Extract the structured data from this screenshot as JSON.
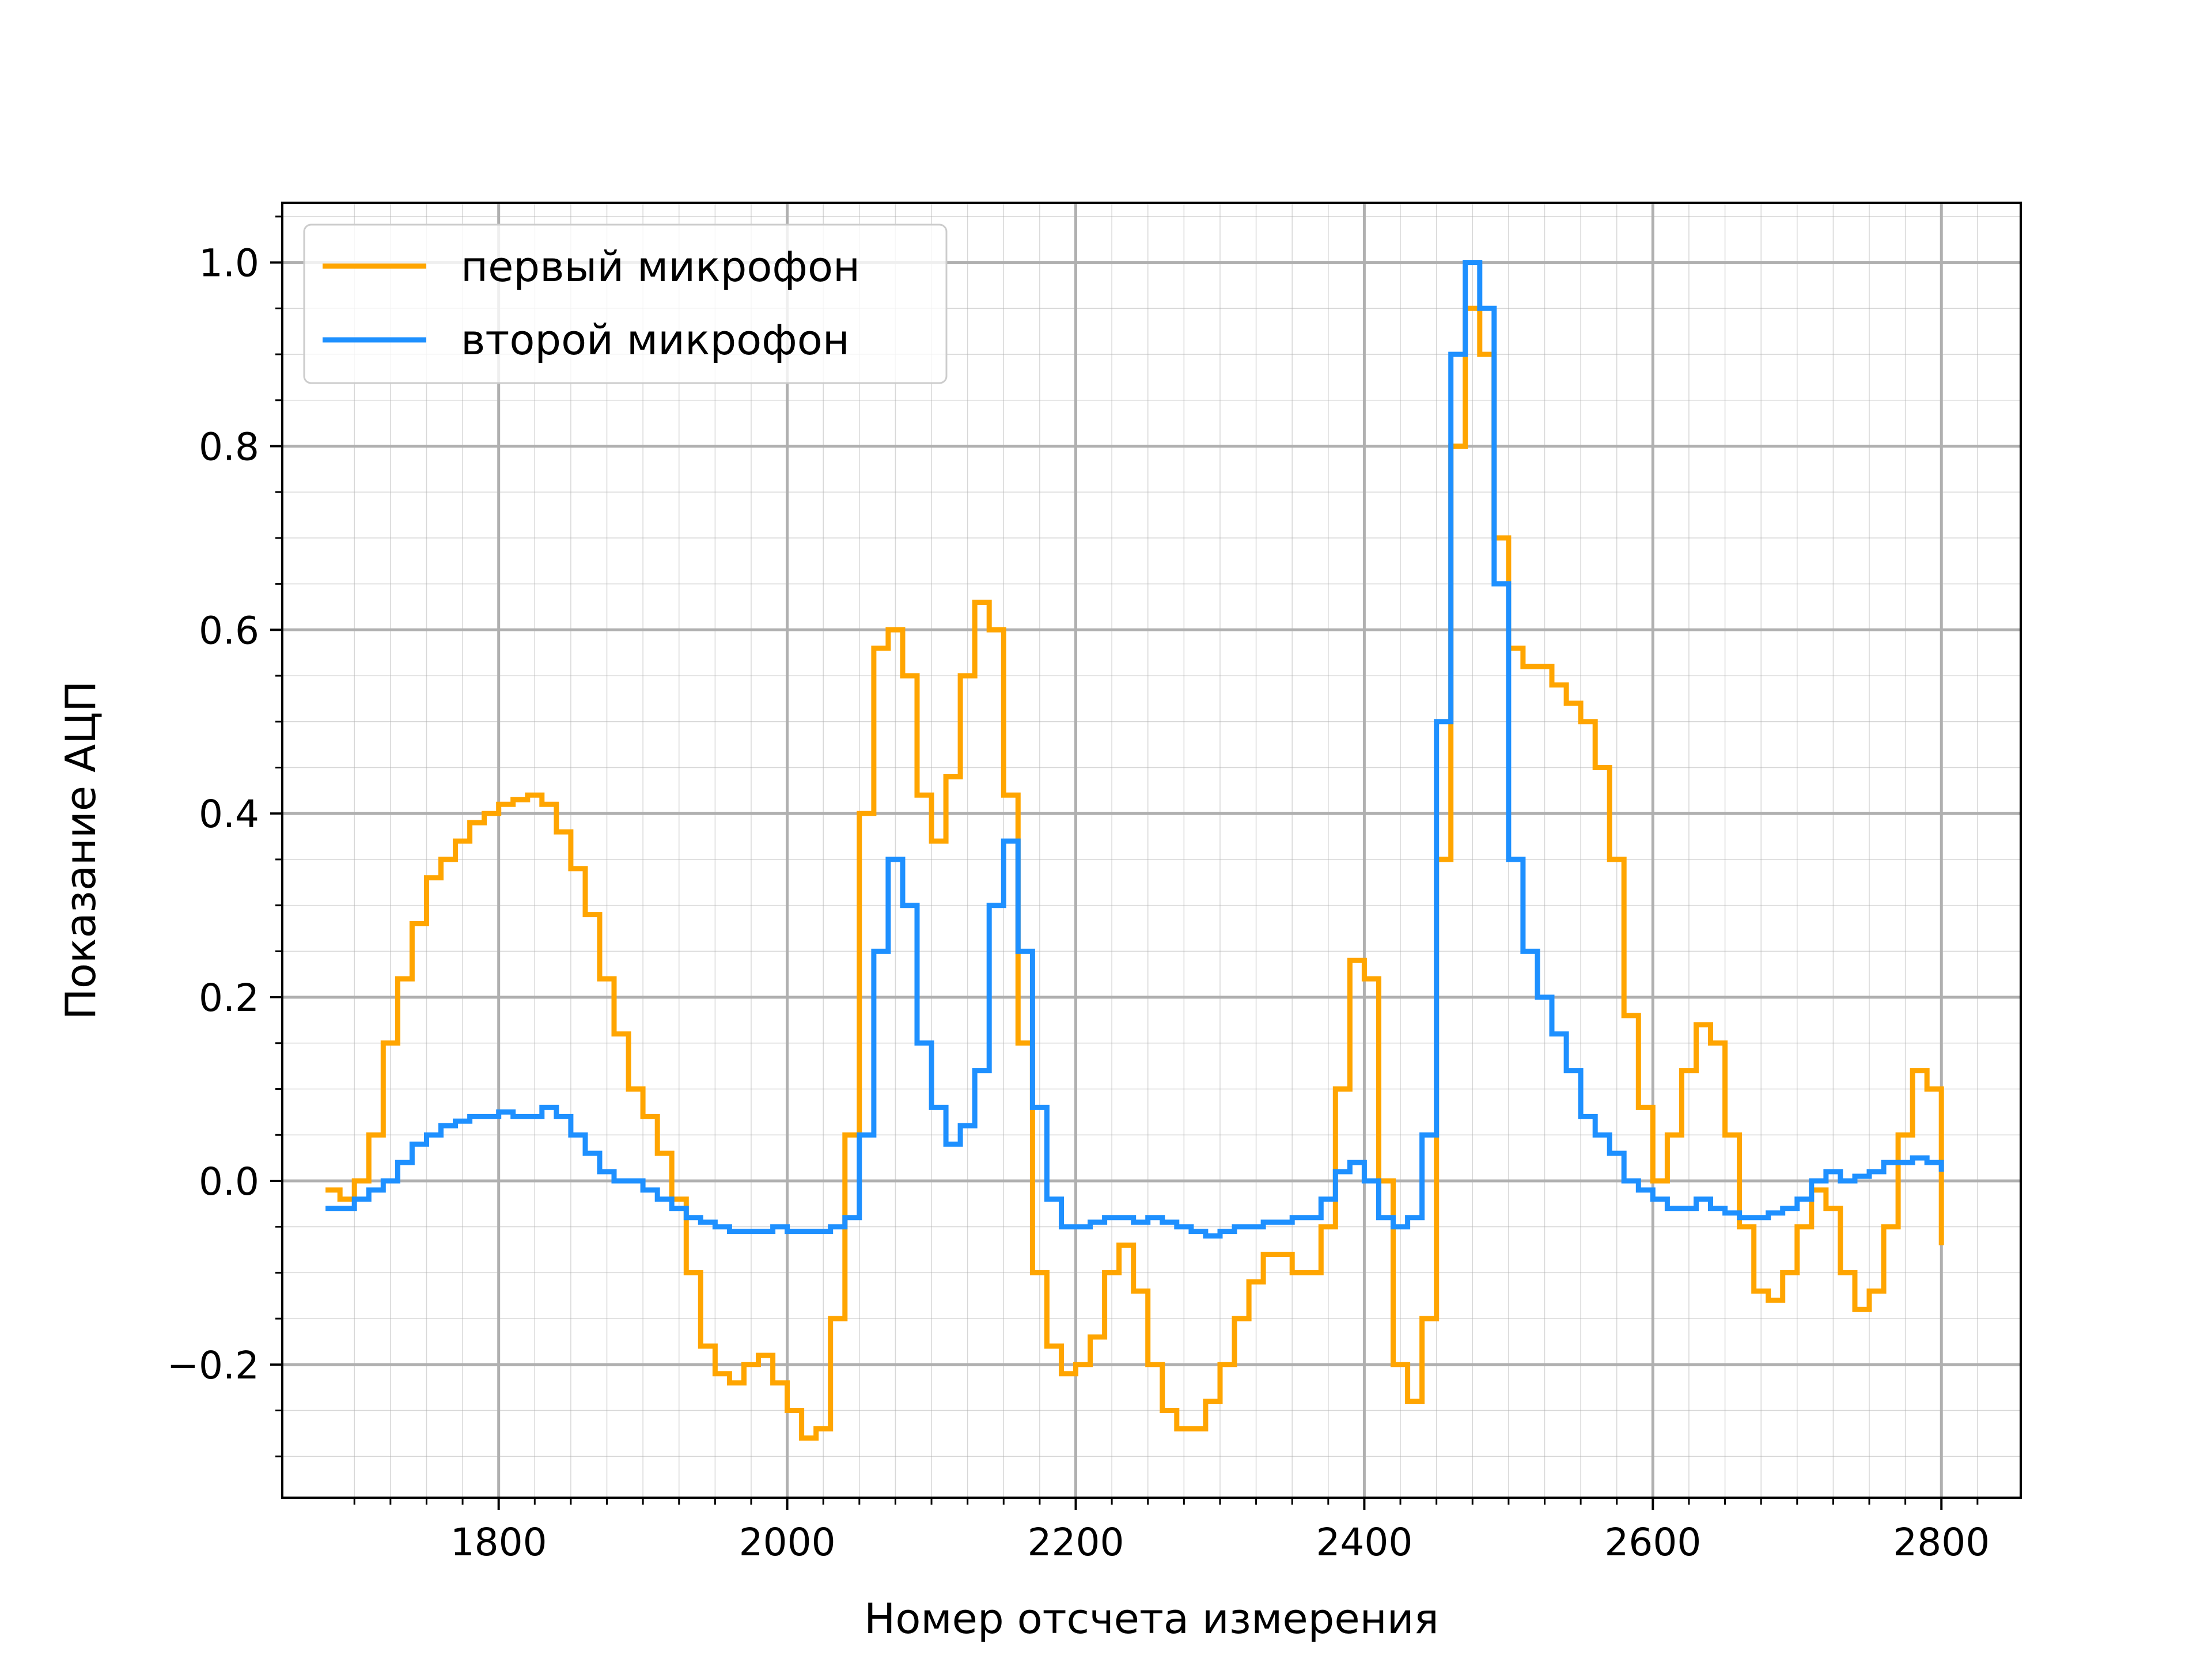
{
  "chart_data": {
    "type": "line",
    "xlabel": "Номер отсчета измерения",
    "ylabel": "Показание АЦП",
    "xlim": [
      1650,
      2855
    ],
    "ylim": [
      -0.345,
      1.065
    ],
    "xticks": [
      1800,
      2000,
      2200,
      2400,
      2600,
      2800
    ],
    "yticks": [
      -0.2,
      0.0,
      0.2,
      0.4,
      0.6,
      0.8,
      1.0
    ],
    "xtick_labels": [
      "1800",
      "2000",
      "2200",
      "2400",
      "2600",
      "2800"
    ],
    "ytick_labels": [
      "−0.2",
      "0.0",
      "0.2",
      "0.4",
      "0.6",
      "0.8",
      "1.0"
    ],
    "grid": true,
    "minor_grid": true,
    "legend_position": "upper-left",
    "series": [
      {
        "name": "первый микрофон",
        "color": "#ffa500",
        "x": [
          1680,
          1690,
          1700,
          1710,
          1720,
          1730,
          1740,
          1750,
          1760,
          1770,
          1780,
          1790,
          1800,
          1810,
          1820,
          1830,
          1840,
          1850,
          1860,
          1870,
          1880,
          1890,
          1900,
          1910,
          1920,
          1930,
          1940,
          1950,
          1960,
          1970,
          1980,
          1990,
          2000,
          2010,
          2020,
          2030,
          2040,
          2050,
          2060,
          2070,
          2080,
          2090,
          2100,
          2110,
          2120,
          2130,
          2140,
          2150,
          2160,
          2170,
          2180,
          2190,
          2200,
          2210,
          2220,
          2230,
          2240,
          2250,
          2260,
          2270,
          2280,
          2290,
          2300,
          2310,
          2320,
          2330,
          2340,
          2350,
          2360,
          2370,
          2380,
          2390,
          2400,
          2410,
          2420,
          2430,
          2440,
          2450,
          2460,
          2470,
          2480,
          2490,
          2500,
          2510,
          2520,
          2530,
          2540,
          2550,
          2560,
          2570,
          2580,
          2590,
          2600,
          2610,
          2620,
          2630,
          2640,
          2650,
          2660,
          2670,
          2680,
          2690,
          2700,
          2710,
          2720,
          2730,
          2740,
          2750,
          2760,
          2770,
          2780,
          2790,
          2800
        ],
        "y": [
          -0.01,
          -0.02,
          0.0,
          0.05,
          0.15,
          0.22,
          0.28,
          0.33,
          0.35,
          0.37,
          0.39,
          0.4,
          0.41,
          0.415,
          0.42,
          0.41,
          0.38,
          0.34,
          0.29,
          0.22,
          0.16,
          0.1,
          0.07,
          0.03,
          -0.02,
          -0.1,
          -0.18,
          -0.21,
          -0.22,
          -0.2,
          -0.19,
          -0.22,
          -0.25,
          -0.28,
          -0.27,
          -0.15,
          0.05,
          0.4,
          0.58,
          0.6,
          0.55,
          0.42,
          0.37,
          0.44,
          0.55,
          0.63,
          0.6,
          0.42,
          0.15,
          -0.1,
          -0.18,
          -0.21,
          -0.2,
          -0.17,
          -0.1,
          -0.07,
          -0.12,
          -0.2,
          -0.25,
          -0.27,
          -0.27,
          -0.24,
          -0.2,
          -0.15,
          -0.11,
          -0.08,
          -0.08,
          -0.1,
          -0.1,
          -0.05,
          0.1,
          0.24,
          0.22,
          0.0,
          -0.2,
          -0.24,
          -0.15,
          0.35,
          0.8,
          0.95,
          0.9,
          0.7,
          0.58,
          0.56,
          0.56,
          0.54,
          0.52,
          0.5,
          0.45,
          0.35,
          0.18,
          0.08,
          0.0,
          0.05,
          0.12,
          0.17,
          0.15,
          0.05,
          -0.05,
          -0.12,
          -0.13,
          -0.1,
          -0.05,
          -0.01,
          -0.03,
          -0.1,
          -0.14,
          -0.12,
          -0.05,
          0.05,
          0.12,
          0.1,
          -0.07
        ]
      },
      {
        "name": "второй микрофон",
        "color": "#1e90ff",
        "x": [
          1680,
          1690,
          1700,
          1710,
          1720,
          1730,
          1740,
          1750,
          1760,
          1770,
          1780,
          1790,
          1800,
          1810,
          1820,
          1830,
          1840,
          1850,
          1860,
          1870,
          1880,
          1890,
          1900,
          1910,
          1920,
          1930,
          1940,
          1950,
          1960,
          1970,
          1980,
          1990,
          2000,
          2010,
          2020,
          2030,
          2040,
          2050,
          2060,
          2070,
          2080,
          2090,
          2100,
          2110,
          2120,
          2130,
          2140,
          2150,
          2160,
          2170,
          2180,
          2190,
          2200,
          2210,
          2220,
          2230,
          2240,
          2250,
          2260,
          2270,
          2280,
          2290,
          2300,
          2310,
          2320,
          2330,
          2340,
          2350,
          2360,
          2370,
          2380,
          2390,
          2400,
          2410,
          2420,
          2430,
          2440,
          2450,
          2460,
          2470,
          2480,
          2490,
          2500,
          2510,
          2520,
          2530,
          2540,
          2550,
          2560,
          2570,
          2580,
          2590,
          2600,
          2610,
          2620,
          2630,
          2640,
          2650,
          2660,
          2670,
          2680,
          2690,
          2700,
          2710,
          2720,
          2730,
          2740,
          2750,
          2760,
          2770,
          2780,
          2790,
          2800
        ],
        "y": [
          -0.03,
          -0.03,
          -0.02,
          -0.01,
          0.0,
          0.02,
          0.04,
          0.05,
          0.06,
          0.065,
          0.07,
          0.07,
          0.075,
          0.07,
          0.07,
          0.08,
          0.07,
          0.05,
          0.03,
          0.01,
          0.0,
          0.0,
          -0.01,
          -0.02,
          -0.03,
          -0.04,
          -0.045,
          -0.05,
          -0.055,
          -0.055,
          -0.055,
          -0.05,
          -0.055,
          -0.055,
          -0.055,
          -0.05,
          -0.04,
          0.05,
          0.25,
          0.35,
          0.3,
          0.15,
          0.08,
          0.04,
          0.06,
          0.12,
          0.3,
          0.37,
          0.25,
          0.08,
          -0.02,
          -0.05,
          -0.05,
          -0.045,
          -0.04,
          -0.04,
          -0.045,
          -0.04,
          -0.045,
          -0.05,
          -0.055,
          -0.06,
          -0.055,
          -0.05,
          -0.05,
          -0.045,
          -0.045,
          -0.04,
          -0.04,
          -0.02,
          0.01,
          0.02,
          0.0,
          -0.04,
          -0.05,
          -0.04,
          0.05,
          0.5,
          0.9,
          1.0,
          0.95,
          0.65,
          0.35,
          0.25,
          0.2,
          0.16,
          0.12,
          0.07,
          0.05,
          0.03,
          0.0,
          -0.01,
          -0.02,
          -0.03,
          -0.03,
          -0.02,
          -0.03,
          -0.035,
          -0.04,
          -0.04,
          -0.035,
          -0.03,
          -0.02,
          0.0,
          0.01,
          0.0,
          0.005,
          0.01,
          0.02,
          0.02,
          0.025,
          0.02,
          0.01
        ]
      }
    ]
  }
}
